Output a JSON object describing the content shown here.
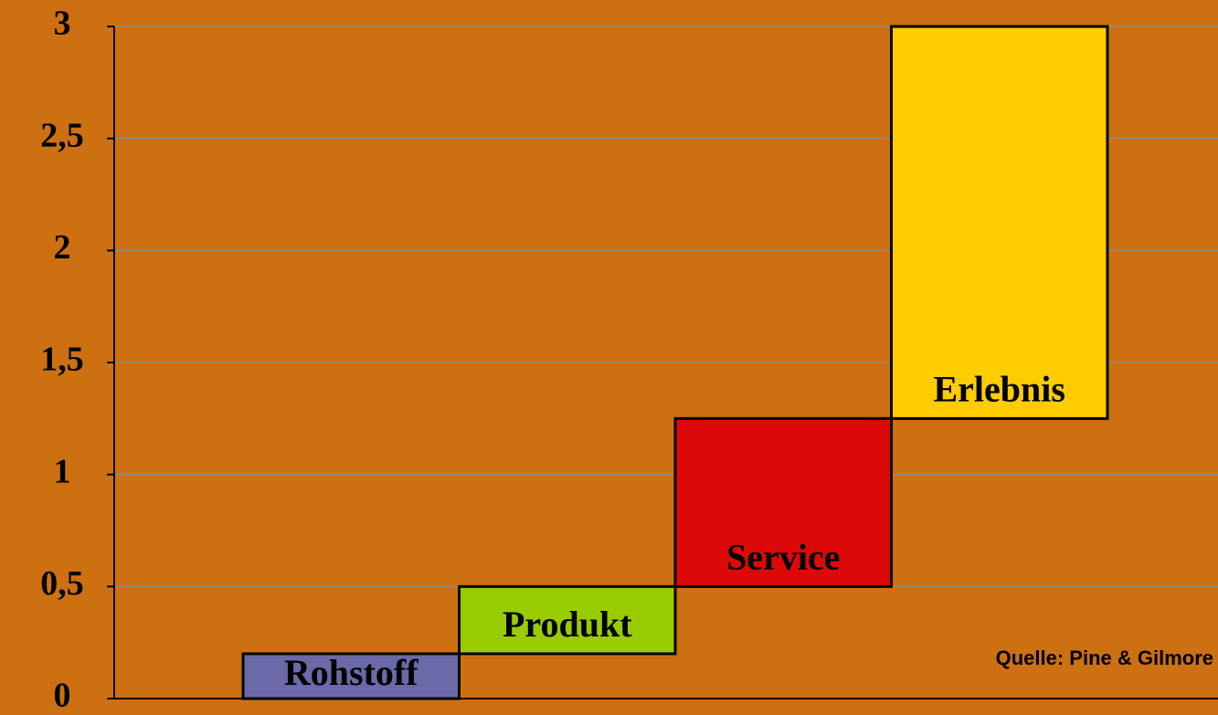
{
  "chart_data": {
    "type": "waterfall",
    "categories": [
      "Rohstoff",
      "Produkt",
      "Service",
      "Erlebnis"
    ],
    "values": [
      0.2,
      0.3,
      0.75,
      1.75
    ],
    "colors": [
      "#6a6aa8",
      "#99cc00",
      "#dd0808",
      "#ffcc00"
    ],
    "ylim": [
      0,
      3
    ],
    "yticks": [
      0,
      {
        "value": 0.5,
        "label": "0,5"
      },
      1,
      {
        "value": 1.5,
        "label": "1,5"
      },
      2,
      {
        "value": 2.5,
        "label": "2,5"
      },
      3
    ],
    "grid": true,
    "annotation": "Quelle: Pine & Gilmore"
  }
}
